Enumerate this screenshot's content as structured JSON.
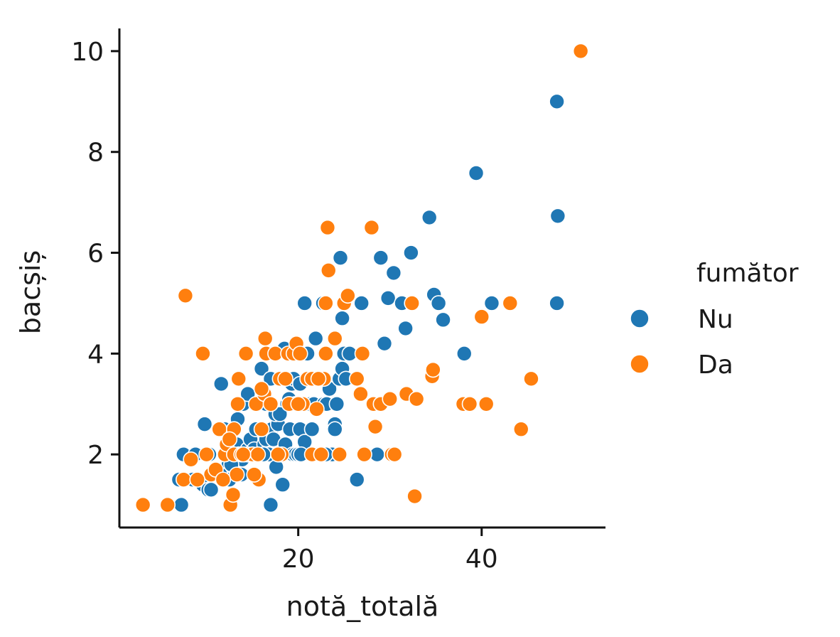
{
  "chart_data": {
    "type": "scatter",
    "title": "",
    "xlabel": "notă_totală",
    "ylabel": "bacșiș",
    "xlim": [
      0.5,
      53.5
    ],
    "ylim": [
      0.55,
      10.45
    ],
    "xticks": [
      20,
      40
    ],
    "yticks": [
      2,
      4,
      6,
      8,
      10
    ],
    "grid": false,
    "legend": {
      "title": "fumător",
      "placement": "right"
    },
    "series": [
      {
        "name": "Nu",
        "color": "#1f77b4",
        "points": [
          [
            7.25,
            1.0
          ],
          [
            17.0,
            1.0
          ],
          [
            7.5,
            2.0
          ],
          [
            8.5,
            1.5
          ],
          [
            9.6,
            1.4
          ],
          [
            10.2,
            1.3
          ],
          [
            10.5,
            1.3
          ],
          [
            11.0,
            1.6
          ],
          [
            11.8,
            1.5
          ],
          [
            12.5,
            1.5
          ],
          [
            12.4,
            1.8
          ],
          [
            12.6,
            2.0
          ],
          [
            13.0,
            2.0
          ],
          [
            13.3,
            2.2
          ],
          [
            13.5,
            2.0
          ],
          [
            13.9,
            1.9
          ],
          [
            14.1,
            2.0
          ],
          [
            14.5,
            2.1
          ],
          [
            14.8,
            2.3
          ],
          [
            15.0,
            2.0
          ],
          [
            15.2,
            2.1
          ],
          [
            15.7,
            2.0
          ],
          [
            16.0,
            2.0
          ],
          [
            16.3,
            2.2
          ],
          [
            16.5,
            2.3
          ],
          [
            16.8,
            2.0
          ],
          [
            17.1,
            2.5
          ],
          [
            17.3,
            2.3
          ],
          [
            17.6,
            1.75
          ],
          [
            17.8,
            2.6
          ],
          [
            18.0,
            2.0
          ],
          [
            18.3,
            1.4
          ],
          [
            18.6,
            2.2
          ],
          [
            18.8,
            3.0
          ],
          [
            19.1,
            2.5
          ],
          [
            19.4,
            2.0
          ],
          [
            19.7,
            2.0
          ],
          [
            20.0,
            2.0
          ],
          [
            20.2,
            2.5
          ],
          [
            20.5,
            2.0
          ],
          [
            20.7,
            2.25
          ],
          [
            20.9,
            3.0
          ],
          [
            21.0,
            3.5
          ],
          [
            21.3,
            3.0
          ],
          [
            21.5,
            3.5
          ],
          [
            21.7,
            3.0
          ],
          [
            22.0,
            3.5
          ],
          [
            22.2,
            2.0
          ],
          [
            22.5,
            3.5
          ],
          [
            22.8,
            3.0
          ],
          [
            23.1,
            3.0
          ],
          [
            23.4,
            3.3
          ],
          [
            23.7,
            2.0
          ],
          [
            24.0,
            2.6
          ],
          [
            24.2,
            3.0
          ],
          [
            24.5,
            3.5
          ],
          [
            24.8,
            3.7
          ],
          [
            25.0,
            4.0
          ],
          [
            25.2,
            3.5
          ],
          [
            25.6,
            4.0
          ],
          [
            26.4,
            1.5
          ],
          [
            26.9,
            5.0
          ],
          [
            28.1,
            3.0
          ],
          [
            28.6,
            2.0
          ],
          [
            29.0,
            5.9
          ],
          [
            29.4,
            4.2
          ],
          [
            29.8,
            5.1
          ],
          [
            30.4,
            5.6
          ],
          [
            31.3,
            5.0
          ],
          [
            31.7,
            4.5
          ],
          [
            32.3,
            6.0
          ],
          [
            34.3,
            6.7
          ],
          [
            34.8,
            5.17
          ],
          [
            35.3,
            5.0
          ],
          [
            35.8,
            4.67
          ],
          [
            38.1,
            4.0
          ],
          [
            39.4,
            7.58
          ],
          [
            41.1,
            5.0
          ],
          [
            48.2,
            9.0
          ],
          [
            48.3,
            6.73
          ],
          [
            48.2,
            5.0
          ],
          [
            7.0,
            1.5
          ],
          [
            8.8,
            2.0
          ],
          [
            9.8,
            2.6
          ],
          [
            10.3,
            2.0
          ],
          [
            11.5,
            1.6
          ],
          [
            11.6,
            3.4
          ],
          [
            12.0,
            2.5
          ],
          [
            13.4,
            2.7
          ],
          [
            14.0,
            3.0
          ],
          [
            14.5,
            3.2
          ],
          [
            15.5,
            3.0
          ],
          [
            16.0,
            3.7
          ],
          [
            16.5,
            3.0
          ],
          [
            17.0,
            3.5
          ],
          [
            17.5,
            2.8
          ],
          [
            18.2,
            3.5
          ],
          [
            18.5,
            4.1
          ],
          [
            19.0,
            3.1
          ],
          [
            19.3,
            3.4
          ],
          [
            19.7,
            3.0
          ],
          [
            20.3,
            2.0
          ],
          [
            20.7,
            5.0
          ],
          [
            21.0,
            4.0
          ],
          [
            21.5,
            2.5
          ],
          [
            21.9,
            4.3
          ],
          [
            22.7,
            5.0
          ],
          [
            22.5,
            2.0
          ],
          [
            23.0,
            2.0
          ],
          [
            24.0,
            2.5
          ],
          [
            24.6,
            5.9
          ],
          [
            24.8,
            4.7
          ],
          [
            16.2,
            2.0
          ],
          [
            15.4,
            2.5
          ],
          [
            13.0,
            2.5
          ],
          [
            12.7,
            1.8
          ],
          [
            13.8,
            1.6
          ],
          [
            19.5,
            3.5
          ],
          [
            20.2,
            3.4
          ],
          [
            18.0,
            2.8
          ]
        ]
      },
      {
        "name": "Da",
        "color": "#ff7f0e",
        "points": [
          [
            3.07,
            1.0
          ],
          [
            5.75,
            1.0
          ],
          [
            7.5,
            1.5
          ],
          [
            7.7,
            5.15
          ],
          [
            8.3,
            1.9
          ],
          [
            9.6,
            4.0
          ],
          [
            10.0,
            2.0
          ],
          [
            10.5,
            1.6
          ],
          [
            11.0,
            1.7
          ],
          [
            11.4,
            2.5
          ],
          [
            12.0,
            2.0
          ],
          [
            12.2,
            2.2
          ],
          [
            12.6,
            1.0
          ],
          [
            12.9,
            1.2
          ],
          [
            13.0,
            2.0
          ],
          [
            13.3,
            1.6
          ],
          [
            13.4,
            3.0
          ],
          [
            13.5,
            3.5
          ],
          [
            13.8,
            2.0
          ],
          [
            14.3,
            4.0
          ],
          [
            14.5,
            2.0
          ],
          [
            15.0,
            2.0
          ],
          [
            15.4,
            3.0
          ],
          [
            15.6,
            2.0
          ],
          [
            15.7,
            1.5
          ],
          [
            16.0,
            2.5
          ],
          [
            16.3,
            3.2
          ],
          [
            16.4,
            4.3
          ],
          [
            16.5,
            4.0
          ],
          [
            17.0,
            3.0
          ],
          [
            17.5,
            4.0
          ],
          [
            18.0,
            3.5
          ],
          [
            18.2,
            2.0
          ],
          [
            18.6,
            3.5
          ],
          [
            18.9,
            4.0
          ],
          [
            19.5,
            4.0
          ],
          [
            19.8,
            4.2
          ],
          [
            20.2,
            4.0
          ],
          [
            20.5,
            3.0
          ],
          [
            21.0,
            3.5
          ],
          [
            21.5,
            2.0
          ],
          [
            22.0,
            2.9
          ],
          [
            22.5,
            2.0
          ],
          [
            22.8,
            3.5
          ],
          [
            23.0,
            4.0
          ],
          [
            23.2,
            6.5
          ],
          [
            23.3,
            5.65
          ],
          [
            23.0,
            5.0
          ],
          [
            24.5,
            2.0
          ],
          [
            25.0,
            5.0
          ],
          [
            25.4,
            5.15
          ],
          [
            26.4,
            3.5
          ],
          [
            26.8,
            3.2
          ],
          [
            27.0,
            4.0
          ],
          [
            27.2,
            2.0
          ],
          [
            28.0,
            6.5
          ],
          [
            28.2,
            3.0
          ],
          [
            28.4,
            2.55
          ],
          [
            29.0,
            3.0
          ],
          [
            30.0,
            3.1
          ],
          [
            30.2,
            2.0
          ],
          [
            30.5,
            2.0
          ],
          [
            31.8,
            3.2
          ],
          [
            32.4,
            5.0
          ],
          [
            32.7,
            1.17
          ],
          [
            32.9,
            3.1
          ],
          [
            34.6,
            3.55
          ],
          [
            34.7,
            3.68
          ],
          [
            38.0,
            3.0
          ],
          [
            38.7,
            3.0
          ],
          [
            40.0,
            4.73
          ],
          [
            40.5,
            3.0
          ],
          [
            43.1,
            5.0
          ],
          [
            44.3,
            2.5
          ],
          [
            45.4,
            3.5
          ],
          [
            50.8,
            10.0
          ],
          [
            9.0,
            1.5
          ],
          [
            11.8,
            1.5
          ],
          [
            13.0,
            2.5
          ],
          [
            14.0,
            2.0
          ],
          [
            15.2,
            1.6
          ],
          [
            16.0,
            3.3
          ],
          [
            17.8,
            2.0
          ],
          [
            19.0,
            3.0
          ],
          [
            20.0,
            3.0
          ],
          [
            21.5,
            3.5
          ],
          [
            22.2,
            3.5
          ],
          [
            12.5,
            2.3
          ],
          [
            24.0,
            4.3
          ]
        ]
      }
    ]
  }
}
